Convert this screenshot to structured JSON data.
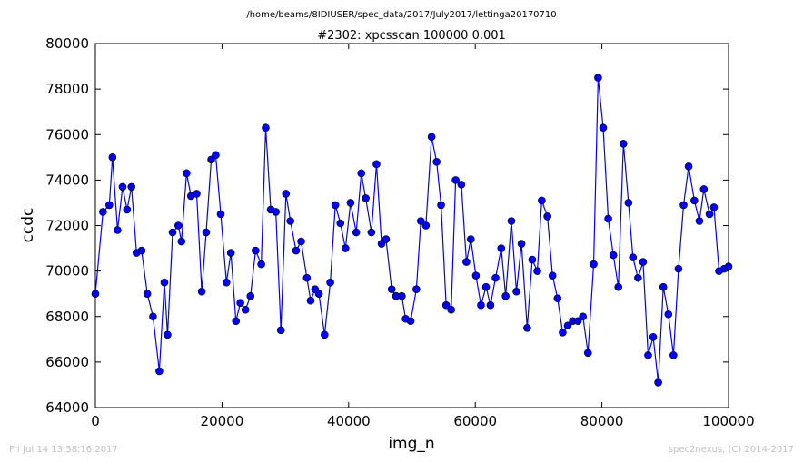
{
  "suptitle": "/home/beams/8IDIUSER/spec_data/2017/July2017/lettinga20170710",
  "footer": {
    "left": "Fri Jul 14 13:58:16 2017",
    "right": "spec2nexus, (C) 2014-2017"
  },
  "colors": {
    "line": "#0000ff",
    "marker": "#0000ff"
  },
  "chart_data": {
    "type": "line",
    "title": "#2302: xpcsscan 100000 0.001",
    "xlabel": "img_n",
    "ylabel": "ccdc",
    "xlim": [
      0,
      100000
    ],
    "ylim": [
      64000,
      80000
    ],
    "xticks": [
      0,
      20000,
      40000,
      60000,
      80000,
      100000
    ],
    "yticks": [
      64000,
      66000,
      68000,
      70000,
      72000,
      74000,
      76000,
      78000,
      80000
    ],
    "xtick_labels": [
      "0",
      "20000",
      "40000",
      "60000",
      "80000",
      "100000"
    ],
    "ytick_labels": [
      "64000",
      "66000",
      "68000",
      "70000",
      "72000",
      "74000",
      "76000",
      "78000",
      "80000"
    ],
    "grid": false,
    "marker": "circle",
    "series": [
      {
        "x": [
          0,
          1200,
          2200,
          2700,
          3500,
          4300,
          5000,
          5700,
          6500,
          7300,
          8200,
          9100,
          10100,
          10900,
          11400,
          12200,
          13100,
          13600,
          14400,
          15100,
          16000,
          16800,
          17500,
          18300,
          19000,
          19800,
          20700,
          21400,
          22200,
          22900,
          23700,
          24500,
          25300,
          26200,
          26900,
          27700,
          28500,
          29300,
          30100,
          30800,
          31700,
          32500,
          33400,
          34000,
          34700,
          35300,
          36200,
          37100,
          37900,
          38700,
          39500,
          40300,
          41200,
          42000,
          42700,
          43600,
          44400,
          45200,
          45900,
          46800,
          47500,
          48400,
          49000,
          49800,
          50700,
          51400,
          52200,
          53100,
          53900,
          54600,
          55400,
          56200,
          56900,
          57800,
          58600,
          59300,
          60100,
          60900,
          61700,
          62400,
          63200,
          64100,
          64800,
          65700,
          66500,
          67300,
          68200,
          69000,
          69800,
          70500,
          71400,
          72200,
          73000,
          73800,
          74600,
          75400,
          76200,
          77000,
          77800,
          78700,
          79400,
          80200,
          81000,
          81800,
          82600,
          83400,
          84200,
          84900,
          85700,
          86500,
          87300,
          88100,
          88900,
          89700,
          90500,
          91300,
          92100,
          92900,
          93700,
          94600,
          95400,
          96100,
          97000,
          97700,
          98500,
          99300,
          100000
        ],
        "y": [
          69000,
          72600,
          72900,
          75000,
          71800,
          73700,
          72700,
          73700,
          70800,
          70900,
          69000,
          68000,
          65600,
          69500,
          67200,
          71700,
          72000,
          71300,
          74300,
          73300,
          73400,
          69100,
          71700,
          74900,
          75100,
          72500,
          69500,
          70800,
          67800,
          68600,
          68300,
          68900,
          70900,
          70300,
          76300,
          72700,
          72600,
          67400,
          73400,
          72200,
          70900,
          71300,
          69700,
          68700,
          69200,
          69000,
          67200,
          69500,
          72900,
          72100,
          71000,
          73000,
          71700,
          74300,
          73200,
          71700,
          74700,
          71200,
          71400,
          69200,
          68900,
          68900,
          67900,
          67800,
          69200,
          72200,
          72000,
          75900,
          74800,
          72900,
          68500,
          68300,
          74000,
          73800,
          70400,
          71400,
          69800,
          68500,
          69300,
          68500,
          69700,
          71000,
          68900,
          72200,
          69100,
          71200,
          67500,
          70500,
          70000,
          73100,
          72400,
          69800,
          68800,
          67300,
          67600,
          67800,
          67800,
          68000,
          66400,
          70300,
          78500,
          76300,
          72300,
          70700,
          69300,
          75600,
          73000,
          70600,
          69700,
          70400,
          66300,
          67100,
          65100,
          69300,
          68100,
          66300,
          70100,
          72900,
          74600,
          73100,
          72200,
          73600,
          72500,
          72800,
          70000,
          70100,
          70200
        ]
      }
    ]
  }
}
